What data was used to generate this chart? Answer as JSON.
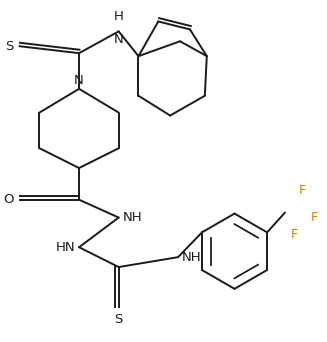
{
  "bg_color": "#ffffff",
  "line_color": "#1a1a1a",
  "F_color": "#cc8800",
  "lw": 1.4,
  "figsize": [
    3.27,
    3.42
  ],
  "dpi": 100,
  "xlim": [
    0,
    327
  ],
  "ylim": [
    0,
    342
  ]
}
